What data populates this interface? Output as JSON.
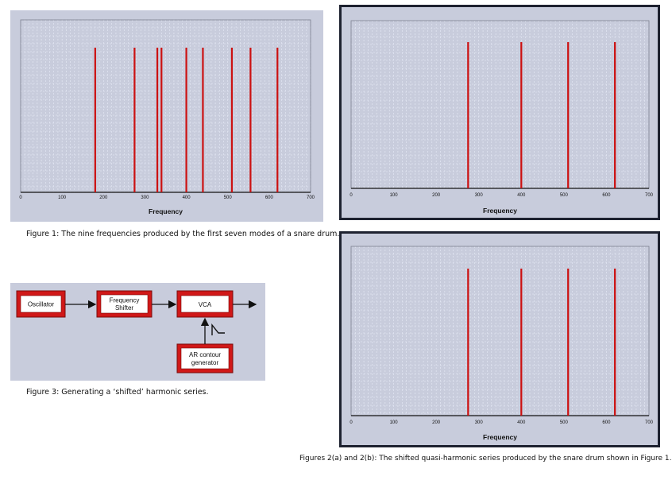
{
  "colors": {
    "panel_bg": "#c8ccdc",
    "grid": "#e8ecf8",
    "line": "#cc1111",
    "dark_frame": "#1e2230",
    "box_red": "#d01818"
  },
  "chart_data": [
    {
      "id": "fig1",
      "type": "bar",
      "title": "",
      "xlabel": "Frequency",
      "ylabel": "",
      "xlim": [
        0,
        700
      ],
      "ticks": [
        "0",
        "100",
        "200",
        "300",
        "400",
        "500",
        "600",
        "700"
      ],
      "tick_values": [
        0,
        100,
        200,
        300,
        400,
        500,
        600,
        700
      ],
      "x": [
        180,
        275,
        330,
        340,
        400,
        440,
        510,
        555,
        620
      ],
      "values": [
        1,
        1,
        1,
        1,
        1,
        1,
        1,
        1,
        1
      ],
      "grid": true,
      "caption": "Figure 1: The nine frequencies produced by the first seven modes of a snare drum."
    },
    {
      "id": "fig2a",
      "type": "bar",
      "title": "",
      "xlabel": "Frequency",
      "ylabel": "",
      "xlim": [
        0,
        700
      ],
      "ticks": [
        "0",
        "100",
        "200",
        "300",
        "400",
        "500",
        "600",
        "700"
      ],
      "tick_values": [
        0,
        100,
        200,
        300,
        400,
        500,
        600,
        700
      ],
      "x": [
        275,
        400,
        510,
        620
      ],
      "values": [
        1,
        1,
        1,
        1
      ],
      "grid": true
    },
    {
      "id": "fig2b",
      "type": "bar",
      "title": "",
      "xlabel": "Frequency",
      "ylabel": "",
      "xlim": [
        0,
        700
      ],
      "ticks": [
        "0",
        "100",
        "200",
        "300",
        "400",
        "500",
        "600",
        "700"
      ],
      "tick_values": [
        0,
        100,
        200,
        300,
        400,
        500,
        600,
        700
      ],
      "x": [
        275,
        400,
        510,
        620
      ],
      "values": [
        1,
        1,
        1,
        1
      ],
      "grid": true
    }
  ],
  "captions": {
    "fig1": "Figure 1: The nine frequencies produced by the first seven modes of a snare drum.",
    "fig2": "Figures 2(a) and 2(b): The shifted quasi-harmonic series produced by the snare drum shown in Figure 1.",
    "fig3": "Figure 3: Generating a ‘shifted’ harmonic series."
  },
  "diagram": {
    "oscillator": "Oscillator",
    "shifter_line1": "Frequency",
    "shifter_line2": "Shifter",
    "vca": "VCA",
    "ar_line1": "AR contour",
    "ar_line2": "generator"
  }
}
